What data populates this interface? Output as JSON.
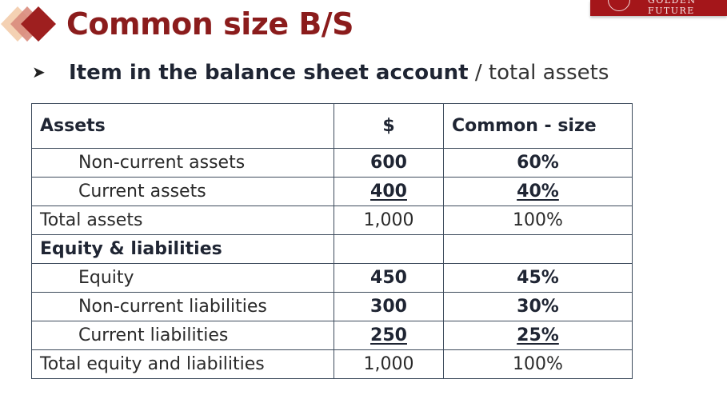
{
  "slide": {
    "title": "Common size B/S",
    "subtitle_bold": "Item in the balance sheet account",
    "subtitle_normal": " / total assets",
    "logo_text": "GOLDEN FUTURE",
    "colors": {
      "title": "#8b1c1c",
      "accent": "#a4161a",
      "border": "#3d4b5c"
    },
    "icons": {
      "bullet": "arrow-bullet-icon",
      "decor": "diamond-decoration-icon"
    }
  },
  "table": {
    "headers": [
      "Assets",
      "$",
      "Common - size"
    ],
    "rows": [
      {
        "label": "Non-current assets",
        "amount": "600",
        "pct": "60%"
      },
      {
        "label": "Current assets",
        "amount": "400",
        "pct": "40%"
      },
      {
        "label": "Total assets",
        "amount": "1,000",
        "pct": "100%"
      },
      {
        "label": "Equity & liabilities",
        "amount": "",
        "pct": ""
      },
      {
        "label": "Equity",
        "amount": "450",
        "pct": "45%"
      },
      {
        "label": "Non-current liabilities",
        "amount": "300",
        "pct": "30%"
      },
      {
        "label": "Current liabilities",
        "amount": "250",
        "pct": "25%"
      },
      {
        "label": "Total equity and liabilities",
        "amount": "1,000",
        "pct": "100%"
      }
    ]
  }
}
